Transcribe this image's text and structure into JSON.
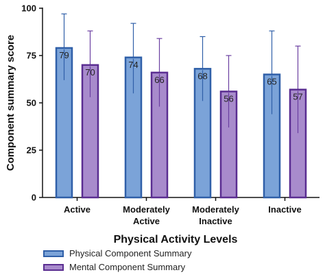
{
  "chart_data": {
    "type": "bar",
    "title": "",
    "xlabel": "Physical Activity Levels",
    "ylabel": "Component summary score",
    "ylim": [
      0,
      100
    ],
    "yticks": [
      0,
      25,
      50,
      75,
      100
    ],
    "categories": [
      [
        "Active"
      ],
      [
        "Moderately",
        "Active"
      ],
      [
        "Moderately",
        "Inactive"
      ],
      [
        "Inactive"
      ]
    ],
    "series": [
      {
        "name": "Physical Component Summary",
        "values": [
          79,
          74,
          68,
          65
        ],
        "labels": [
          "79",
          "74",
          "68",
          "65"
        ],
        "error_low": [
          62,
          55,
          51,
          44
        ],
        "error_high": [
          97,
          92,
          85,
          88
        ],
        "fill": "#7ba3d8",
        "stroke": "#2f5fa8",
        "error_color": "#2f5fa8"
      },
      {
        "name": "Mental Component Summary",
        "values": [
          70,
          66,
          56,
          57
        ],
        "labels": [
          "70",
          "66",
          "56",
          "57"
        ],
        "error_low": [
          53,
          48,
          37,
          34
        ],
        "error_high": [
          88,
          84,
          75,
          80
        ],
        "fill": "#a88bcc",
        "stroke": "#5a2d91",
        "error_color": "#6a3ea0"
      }
    ],
    "legend_position": "bottom-left",
    "grid": false
  }
}
